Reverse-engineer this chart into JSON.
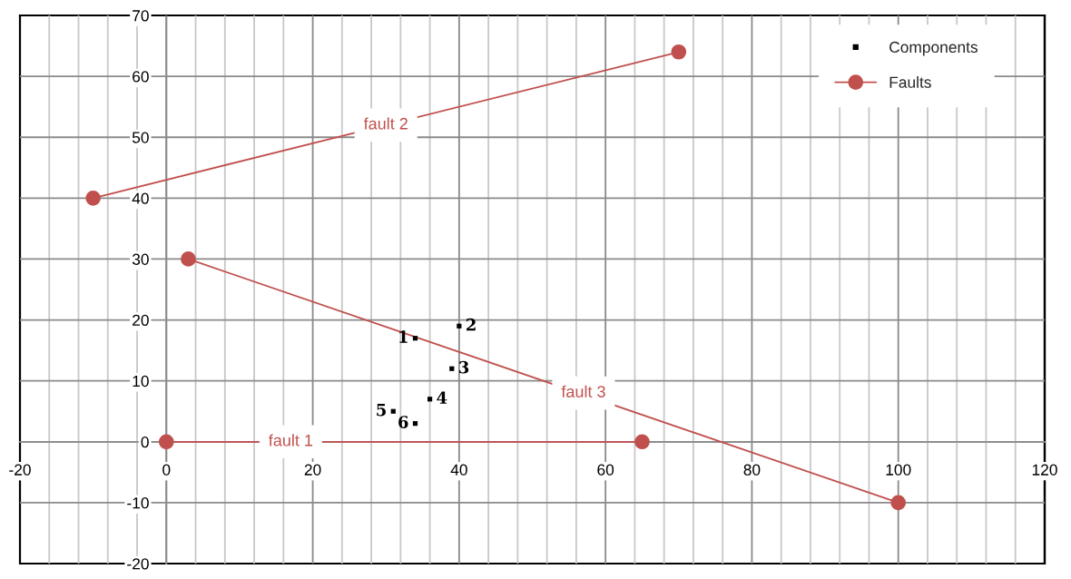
{
  "chart_data": {
    "type": "scatter",
    "xlim": [
      -20,
      120
    ],
    "ylim": [
      -20,
      70
    ],
    "xticks": [
      -20,
      {
        "value": -16,
        "label": null
      },
      {
        "value": -12,
        "label": null
      },
      {
        "value": -8,
        "label": null
      },
      {
        "value": -4,
        "label": null
      },
      0,
      {
        "value": 4,
        "label": null
      },
      {
        "value": 8,
        "label": null
      },
      {
        "value": 12,
        "label": null
      },
      {
        "value": 16,
        "label": null
      },
      20,
      {
        "value": 24,
        "label": null
      },
      {
        "value": 28,
        "label": null
      },
      {
        "value": 32,
        "label": null
      },
      {
        "value": 36,
        "label": null
      },
      40,
      {
        "value": 44,
        "label": null
      },
      {
        "value": 48,
        "label": null
      },
      {
        "value": 52,
        "label": null
      },
      {
        "value": 56,
        "label": null
      },
      60,
      {
        "value": 64,
        "label": null
      },
      {
        "value": 68,
        "label": null
      },
      {
        "value": 72,
        "label": null
      },
      {
        "value": 76,
        "label": null
      },
      80,
      {
        "value": 84,
        "label": null
      },
      {
        "value": 88,
        "label": null
      },
      {
        "value": 92,
        "label": null
      },
      {
        "value": 96,
        "label": null
      },
      100,
      {
        "value": 104,
        "label": null
      },
      {
        "value": 108,
        "label": null
      },
      {
        "value": 112,
        "label": null
      },
      {
        "value": 116,
        "label": null
      },
      120
    ],
    "yticks": [
      -20,
      -10,
      0,
      10,
      20,
      30,
      40,
      50,
      60,
      70
    ],
    "grid": true,
    "legend": "top right",
    "series": [
      {
        "name": "Components",
        "color": "#000000",
        "marker": "square",
        "x": [
          34,
          40,
          39,
          36,
          31,
          34
        ],
        "values": [
          17,
          19,
          12,
          7,
          5,
          3
        ]
      },
      {
        "name": "Faults",
        "type": "line",
        "color": "#c0504d",
        "marker": "circle",
        "x": [
          0,
          65,
          null,
          -10,
          70,
          null,
          3,
          100
        ],
        "values": [
          0,
          0,
          null,
          40,
          64,
          null,
          30,
          -10
        ]
      }
    ],
    "annotations": [
      {
        "text": "1",
        "x": 34,
        "y": 17
      },
      {
        "text": "2",
        "x": 40,
        "y": 19
      },
      {
        "text": "3",
        "x": 39,
        "y": 12
      },
      {
        "text": "4",
        "x": 36,
        "y": 7
      },
      {
        "text": "5",
        "x": 31,
        "y": 5
      },
      {
        "text": "6",
        "x": 34,
        "y": 3
      },
      {
        "text": "fault 1",
        "x": 17,
        "y": 0
      },
      {
        "text": "fault 2",
        "x": 30,
        "y": 52
      },
      {
        "text": "fault 3",
        "x": 57,
        "y": 8
      }
    ]
  }
}
